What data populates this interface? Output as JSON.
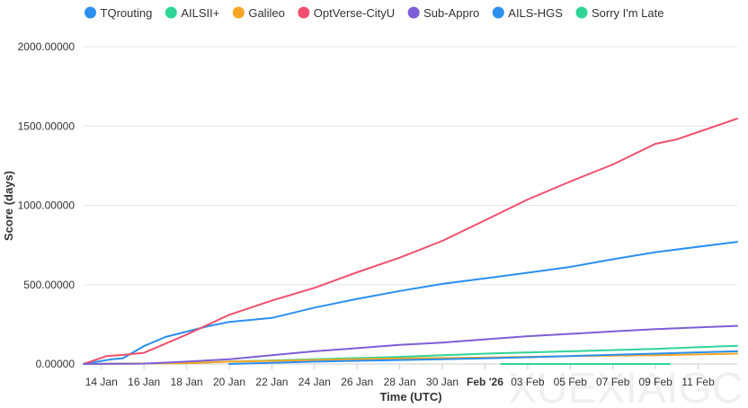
{
  "chart_data": {
    "type": "line",
    "title": "",
    "xlabel": "Time (UTC)",
    "ylabel": "Score (days)",
    "ylim": [
      0,
      2000
    ],
    "xlim": [
      "2026-01-13T04:00",
      "2026-02-12T20:00"
    ],
    "grid": true,
    "legend_position": "top",
    "y_ticks": [
      "0.00000",
      "500.00000",
      "1000.00000",
      "1500.00000",
      "2000.00000"
    ],
    "y_tick_values": [
      0,
      500,
      1000,
      1500,
      2000
    ],
    "x_ticks": [
      {
        "label": "14 Jan",
        "date": "2026-01-14"
      },
      {
        "label": "16 Jan",
        "date": "2026-01-16"
      },
      {
        "label": "18 Jan",
        "date": "2026-01-18"
      },
      {
        "label": "20 Jan",
        "date": "2026-01-20"
      },
      {
        "label": "22 Jan",
        "date": "2026-01-22"
      },
      {
        "label": "24 Jan",
        "date": "2026-01-24"
      },
      {
        "label": "26 Jan",
        "date": "2026-01-26"
      },
      {
        "label": "28 Jan",
        "date": "2026-01-28"
      },
      {
        "label": "30 Jan",
        "date": "2026-01-30"
      },
      {
        "label": "Feb '26",
        "date": "2026-02-01",
        "bold": true
      },
      {
        "label": "03 Feb",
        "date": "2026-02-03"
      },
      {
        "label": "05 Feb",
        "date": "2026-02-05"
      },
      {
        "label": "07 Feb",
        "date": "2026-02-07"
      },
      {
        "label": "09 Feb",
        "date": "2026-02-09"
      },
      {
        "label": "11 Feb",
        "date": "2026-02-11"
      }
    ],
    "series": [
      {
        "name": "TQrouting",
        "color": "#2b8ff0",
        "points": [
          [
            "2026-01-13T04:00",
            0
          ],
          [
            "2026-01-14T12:00",
            30
          ],
          [
            "2026-01-15T00:00",
            35
          ],
          [
            "2026-01-16T00:00",
            113
          ],
          [
            "2026-01-17T00:00",
            170
          ],
          [
            "2026-01-18T00:00",
            204
          ],
          [
            "2026-01-19T00:00",
            238
          ],
          [
            "2026-01-20T00:00",
            265
          ],
          [
            "2026-01-22T00:00",
            290
          ],
          [
            "2026-01-24T00:00",
            355
          ],
          [
            "2026-01-26T00:00",
            410
          ],
          [
            "2026-01-28T00:00",
            460
          ],
          [
            "2026-01-30T00:00",
            505
          ],
          [
            "2026-02-01T00:00",
            540
          ],
          [
            "2026-02-03T00:00",
            575
          ],
          [
            "2026-02-05T00:00",
            612
          ],
          [
            "2026-02-07T00:00",
            660
          ],
          [
            "2026-02-09T00:00",
            705
          ],
          [
            "2026-02-12T20:00",
            770
          ]
        ]
      },
      {
        "name": "AILSII+",
        "color": "#2fd596",
        "points": [
          [
            "2026-01-13T04:00",
            0
          ],
          [
            "2026-01-18T00:00",
            5
          ],
          [
            "2026-01-20T00:00",
            15
          ],
          [
            "2026-01-24T00:00",
            30
          ],
          [
            "2026-01-28T00:00",
            45
          ],
          [
            "2026-02-01T00:00",
            65
          ],
          [
            "2026-02-05T00:00",
            80
          ],
          [
            "2026-02-09T00:00",
            95
          ],
          [
            "2026-02-12T20:00",
            115
          ]
        ]
      },
      {
        "name": "Galileo",
        "color": "#f7a623",
        "points": [
          [
            "2026-01-13T04:00",
            0
          ],
          [
            "2026-01-18T00:00",
            5
          ],
          [
            "2026-01-20T00:00",
            15
          ],
          [
            "2026-01-24T00:00",
            25
          ],
          [
            "2026-01-28T00:00",
            35
          ],
          [
            "2026-02-01T00:00",
            40
          ],
          [
            "2026-02-05T00:00",
            50
          ],
          [
            "2026-02-09T00:00",
            55
          ],
          [
            "2026-02-12T20:00",
            65
          ]
        ]
      },
      {
        "name": "OptVerse-CityU",
        "color": "#f0506e",
        "points": [
          [
            "2026-01-13T04:00",
            0
          ],
          [
            "2026-01-14T06:00",
            50
          ],
          [
            "2026-01-15T06:00",
            60
          ],
          [
            "2026-01-16T00:00",
            70
          ],
          [
            "2026-01-18T00:00",
            185
          ],
          [
            "2026-01-20T00:00",
            310
          ],
          [
            "2026-01-22T00:00",
            400
          ],
          [
            "2026-01-24T00:00",
            480
          ],
          [
            "2026-01-26T00:00",
            578
          ],
          [
            "2026-01-28T00:00",
            670
          ],
          [
            "2026-01-30T00:00",
            776
          ],
          [
            "2026-02-01T00:00",
            906
          ],
          [
            "2026-02-03T00:00",
            1037
          ],
          [
            "2026-02-05T00:00",
            1150
          ],
          [
            "2026-02-07T00:00",
            1258
          ],
          [
            "2026-02-09T00:00",
            1388
          ],
          [
            "2026-02-10T00:00",
            1416
          ],
          [
            "2026-02-12T20:00",
            1547
          ]
        ]
      },
      {
        "name": "Sub-Appro",
        "color": "#7e5ed6",
        "points": [
          [
            "2026-01-13T04:00",
            0
          ],
          [
            "2026-01-16T00:00",
            2
          ],
          [
            "2026-01-18T00:00",
            15
          ],
          [
            "2026-01-20T00:00",
            30
          ],
          [
            "2026-01-22T00:00",
            55
          ],
          [
            "2026-01-24T00:00",
            80
          ],
          [
            "2026-01-26T00:00",
            100
          ],
          [
            "2026-01-28T00:00",
            120
          ],
          [
            "2026-01-30T00:00",
            135
          ],
          [
            "2026-02-01T00:00",
            155
          ],
          [
            "2026-02-03T00:00",
            175
          ],
          [
            "2026-02-05T00:00",
            190
          ],
          [
            "2026-02-07T00:00",
            205
          ],
          [
            "2026-02-09T00:00",
            220
          ],
          [
            "2026-02-12T20:00",
            240
          ]
        ]
      },
      {
        "name": "AILS-HGS",
        "color": "#2b8ff0",
        "points": [
          [
            "2026-01-20T00:00",
            0
          ],
          [
            "2026-01-24T00:00",
            15
          ],
          [
            "2026-01-28T00:00",
            25
          ],
          [
            "2026-02-01T00:00",
            35
          ],
          [
            "2026-02-05T00:00",
            50
          ],
          [
            "2026-02-09T00:00",
            65
          ],
          [
            "2026-02-12T20:00",
            80
          ]
        ]
      },
      {
        "name": "Sorry I'm Late",
        "color": "#2fd596",
        "points": [
          [
            "2026-02-01T18:00",
            0
          ],
          [
            "2026-02-09T16:00",
            0
          ]
        ]
      }
    ]
  },
  "watermark": "XUEXIAIGC"
}
